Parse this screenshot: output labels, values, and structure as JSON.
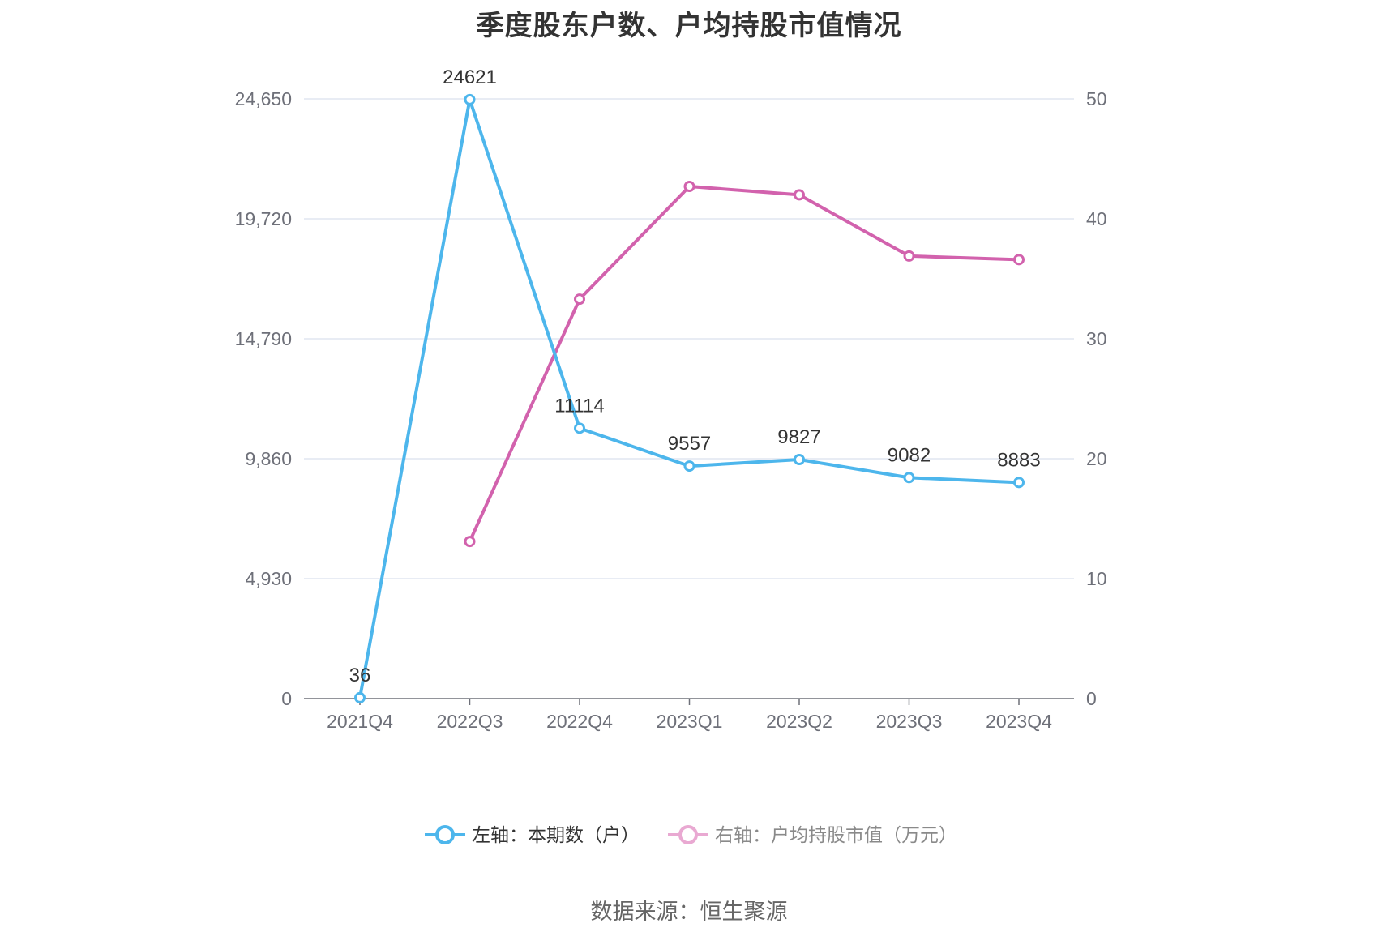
{
  "chart_data": {
    "type": "line",
    "title": "季度股东户数、户均持股市值情况",
    "source": "数据来源：恒生聚源",
    "categories": [
      "2021Q4",
      "2022Q3",
      "2022Q4",
      "2023Q1",
      "2023Q2",
      "2023Q3",
      "2023Q4"
    ],
    "left_axis": {
      "min": 0,
      "max": 24650,
      "ticks": [
        0,
        4930,
        9860,
        14790,
        19720,
        24650
      ],
      "tick_labels": [
        "0",
        "4,930",
        "9,860",
        "14,790",
        "19,720",
        "24,650"
      ]
    },
    "right_axis": {
      "min": 0,
      "max": 50,
      "ticks": [
        0,
        10,
        20,
        30,
        40,
        50
      ],
      "tick_labels": [
        "0",
        "10",
        "20",
        "30",
        "40",
        "50"
      ]
    },
    "grid": true,
    "legend_position": "bottom",
    "series": [
      {
        "name": "左轴：本期数（户）",
        "axis": "left",
        "color": "#4db6ec",
        "values": [
          36,
          24621,
          11114,
          9557,
          9827,
          9082,
          8883
        ],
        "labels": [
          "36",
          "24621",
          "11114",
          "9557",
          "9827",
          "9082",
          "8883"
        ]
      },
      {
        "name": "右轴：户均持股市值（万元）",
        "axis": "right",
        "color": "#d262ad",
        "legend_color": "#e9a9d2",
        "values": [
          null,
          13.1,
          33.3,
          42.7,
          42.0,
          36.9,
          36.6
        ]
      }
    ]
  }
}
